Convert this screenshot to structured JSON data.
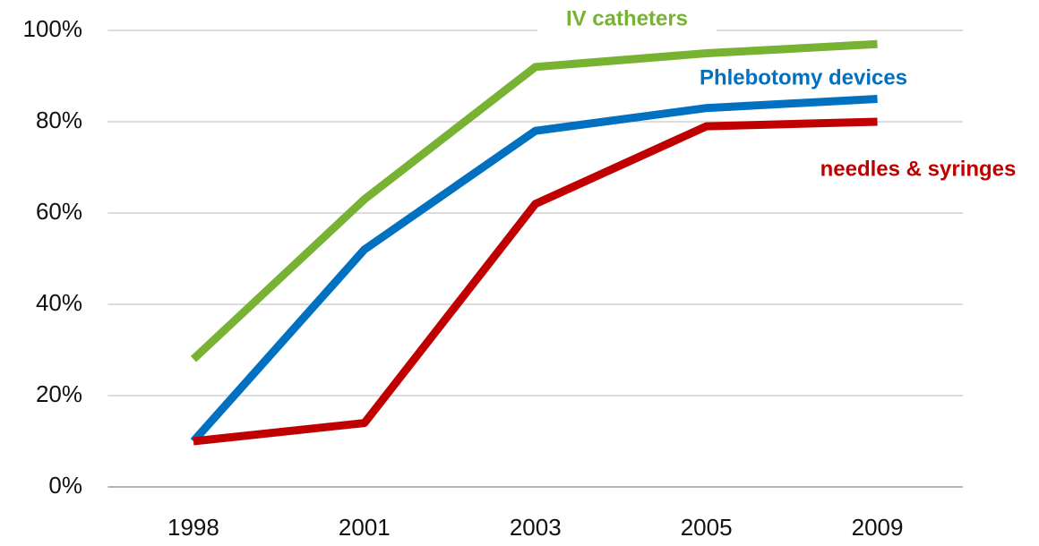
{
  "chart_data": {
    "type": "line",
    "categories": [
      "1998",
      "2001",
      "2003",
      "2005",
      "2009"
    ],
    "series": [
      {
        "name": "IV catheters",
        "color": "#77b233",
        "values": [
          28,
          63,
          92,
          95,
          97
        ]
      },
      {
        "name": "Phlebotomy devices",
        "color": "#0070c0",
        "values": [
          10,
          52,
          78,
          83,
          85
        ]
      },
      {
        "name": "needles & syringes",
        "color": "#c00000",
        "values": [
          10,
          14,
          62,
          79,
          80
        ]
      }
    ],
    "ylim": [
      0,
      100
    ],
    "yticks": [
      {
        "value": 0,
        "label": "0%"
      },
      {
        "value": 20,
        "label": "20%"
      },
      {
        "value": 40,
        "label": "40%"
      },
      {
        "value": 60,
        "label": "60%"
      },
      {
        "value": 80,
        "label": "80%"
      },
      {
        "value": 100,
        "label": "100%"
      }
    ],
    "grid": true
  }
}
